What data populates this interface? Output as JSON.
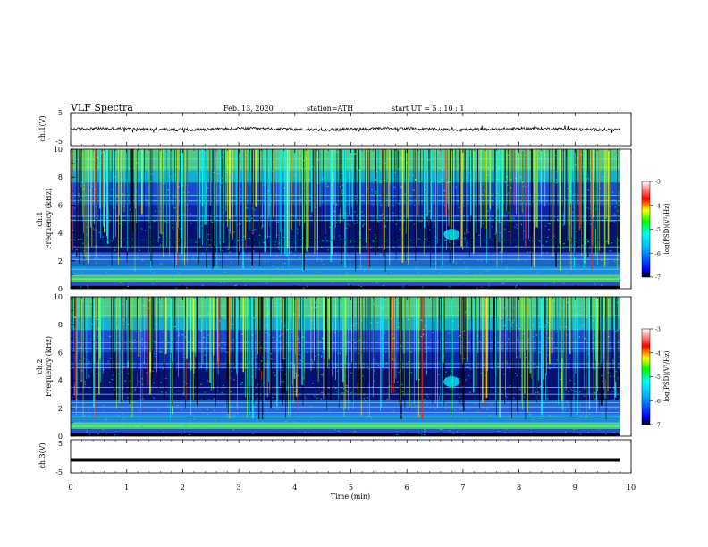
{
  "header": {
    "title": "VLF  Spectra",
    "date": "Feb. 13, 2020",
    "station": "station=ATH",
    "start": "start  UT  =    5  : 10 : 1"
  },
  "chart_data": [
    {
      "type": "line",
      "name": "ch1-waveform",
      "ylabel": "ch.1(V)",
      "yticks": [
        "5",
        "-5"
      ],
      "ylim": [
        -5,
        5
      ],
      "xlim": [
        0,
        10
      ],
      "baseline": 0,
      "data_extent_x": [
        0,
        9.8
      ]
    },
    {
      "type": "heatmap",
      "name": "ch1-spectrogram",
      "ylabel": "ch.1\nFrequency  (kHz)",
      "yticks": [
        "10",
        "8",
        "6",
        "4",
        "2",
        "0"
      ],
      "ylim": [
        0,
        10
      ],
      "xlim": [
        0,
        10
      ],
      "colorbar": {
        "label": "log(PSD)(V²/Hz)",
        "ticks": [
          "-3",
          "-4",
          "-5",
          "-6",
          "-7"
        ],
        "range": [
          -7,
          -3
        ]
      }
    },
    {
      "type": "heatmap",
      "name": "ch2-spectrogram",
      "ylabel": "ch.2\nFrequency  (kHz)",
      "yticks": [
        "10",
        "8",
        "6",
        "4",
        "2",
        "0"
      ],
      "ylim": [
        0,
        10
      ],
      "xlim": [
        0,
        10
      ],
      "colorbar": {
        "label": "log(PSD)(V²/Hz)",
        "ticks": [
          "-3",
          "-4",
          "-5",
          "-6",
          "-7"
        ],
        "range": [
          -7,
          -3
        ]
      }
    },
    {
      "type": "line",
      "name": "ch3-waveform",
      "ylabel": "ch.3(V)",
      "yticks": [
        "5",
        "-5"
      ],
      "ylim": [
        -5,
        5
      ],
      "xlim": [
        0,
        10
      ],
      "baseline": 0,
      "data_extent_x": [
        0,
        9.8
      ]
    }
  ],
  "x_axis": {
    "label": "Time  (min)",
    "ticks": [
      "0",
      "1",
      "2",
      "3",
      "4",
      "5",
      "6",
      "7",
      "8",
      "9",
      "10"
    ],
    "range": [
      0,
      10
    ]
  },
  "colors": {
    "spectrogram_background": "#0a1fa0",
    "colormap": [
      "#000000",
      "#0000ff",
      "#00ffff",
      "#00ff00",
      "#ffff00",
      "#ff0000",
      "#ffffff"
    ]
  }
}
